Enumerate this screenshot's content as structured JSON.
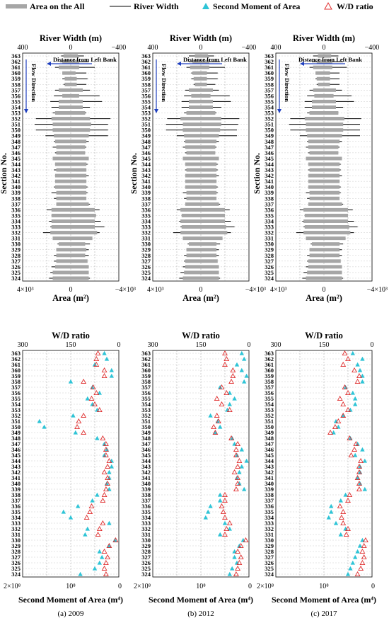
{
  "legend": {
    "area_label": "Area on the All",
    "width_label": "River Width",
    "smoa_label": "Second Moment of Area",
    "wd_label": "W/D ratio"
  },
  "labels": {
    "top_axis": "River Width (m)",
    "bottom_axis": "Area (m²)",
    "y_axis": "Section No.",
    "distance_note": "Distance from Left Bank",
    "flow_note": "Flow Direction",
    "wd_top_axis": "W/D ratio",
    "smoa_axis": "Second Moment of Area (m⁴)"
  },
  "ticks": {
    "width": [
      "400",
      "0",
      "−400"
    ],
    "area": [
      "4×10³",
      "0",
      "−4×10³"
    ],
    "wd": [
      "300",
      "150",
      "0"
    ],
    "smoa": [
      "2×10⁸",
      "10⁸",
      "0"
    ]
  },
  "colors": {
    "area_bar": "#a6a6a6",
    "width_line": "#000000",
    "smoa_marker": "#2ec4d6",
    "wd_marker": "#e03030",
    "flow_arrow": "#1f3fbf"
  },
  "chart_data": {
    "type": "composite",
    "sections": [
      363,
      362,
      361,
      360,
      359,
      358,
      357,
      356,
      355,
      354,
      353,
      352,
      351,
      350,
      349,
      348,
      347,
      346,
      345,
      344,
      343,
      342,
      341,
      340,
      339,
      338,
      337,
      336,
      335,
      334,
      333,
      332,
      331,
      330,
      329,
      328,
      327,
      326,
      325,
      324
    ],
    "years": [
      {
        "caption": "(a) 2009",
        "width_left": [
          80,
          90,
          130,
          70,
          70,
          60,
          130,
          140,
          170,
          160,
          150,
          290,
          300,
          290,
          210,
          140,
          150,
          130,
          110,
          120,
          140,
          110,
          110,
          140,
          160,
          140,
          120,
          200,
          150,
          180,
          170,
          230,
          150,
          110,
          120,
          140,
          140,
          160,
          170,
          180
        ],
        "width_right": [
          110,
          150,
          200,
          130,
          140,
          130,
          160,
          240,
          260,
          160,
          130,
          330,
          310,
          310,
          310,
          150,
          130,
          110,
          100,
          140,
          130,
          150,
          130,
          140,
          140,
          110,
          160,
          240,
          210,
          250,
          280,
          240,
          180,
          160,
          150,
          150,
          110,
          110,
          140,
          160
        ],
        "area_left": [
          600,
          700,
          1000,
          700,
          500,
          500,
          1000,
          700,
          1000,
          1000,
          1300,
          1600,
          1500,
          1500,
          1400,
          1300,
          1200,
          1200,
          1500,
          1300,
          1200,
          1300,
          1300,
          1300,
          1200,
          1200,
          1200,
          1600,
          1600,
          1600,
          1600,
          1700,
          1500,
          1000,
          1200,
          1200,
          1200,
          1300,
          1500,
          1500
        ],
        "area_right": [
          600,
          700,
          700,
          400,
          500,
          500,
          1000,
          700,
          1000,
          1000,
          1200,
          1600,
          1700,
          1600,
          1500,
          1300,
          1200,
          1200,
          1500,
          1300,
          1300,
          1300,
          1300,
          1300,
          1300,
          1300,
          1500,
          2000,
          2100,
          2000,
          2000,
          2200,
          1800,
          1200,
          1300,
          1200,
          1400,
          1500,
          1500,
          1500
        ],
        "wd": [
          65,
          70,
          70,
          45,
          45,
          110,
          80,
          70,
          85,
          75,
          60,
          110,
          125,
          130,
          110,
          50,
          40,
          40,
          40,
          30,
          35,
          45,
          35,
          35,
          40,
          45,
          50,
          85,
          90,
          100,
          50,
          60,
          65,
          10,
          30,
          45,
          35,
          40,
          45,
          40
        ],
        "smoa": [
          30000000.0,
          25000000.0,
          50000000.0,
          15000000.0,
          15000000.0,
          100000000.0,
          55000000.0,
          40000000.0,
          65000000.0,
          55000000.0,
          45000000.0,
          95000000.0,
          165000000.0,
          155000000.0,
          90000000.0,
          45000000.0,
          30000000.0,
          25000000.0,
          30000000.0,
          15000000.0,
          15000000.0,
          20000000.0,
          20000000.0,
          25000000.0,
          20000000.0,
          45000000.0,
          55000000.0,
          85000000.0,
          115000000.0,
          100000000.0,
          20000000.0,
          65000000.0,
          70000000.0,
          8000000.0,
          20000000.0,
          40000000.0,
          35000000.0,
          40000000.0,
          50000000.0,
          80000000.0
        ]
      },
      {
        "caption": "(b) 2012",
        "width_left": [
          100,
          100,
          120,
          80,
          80,
          60,
          130,
          140,
          160,
          160,
          140,
          280,
          290,
          290,
          200,
          140,
          150,
          130,
          110,
          120,
          130,
          110,
          110,
          130,
          150,
          140,
          120,
          200,
          160,
          180,
          170,
          230,
          150,
          110,
          120,
          140,
          140,
          150,
          170,
          180
        ],
        "width_right": [
          110,
          160,
          200,
          140,
          140,
          120,
          150,
          240,
          250,
          170,
          130,
          320,
          310,
          300,
          300,
          150,
          130,
          110,
          100,
          140,
          140,
          150,
          130,
          140,
          140,
          110,
          160,
          240,
          200,
          250,
          280,
          250,
          180,
          160,
          150,
          150,
          110,
          110,
          140,
          160
        ],
        "area_left": [
          500,
          700,
          900,
          700,
          600,
          500,
          1000,
          800,
          1000,
          1000,
          1200,
          1700,
          1500,
          1500,
          1400,
          1300,
          1300,
          1200,
          1500,
          1300,
          1200,
          1300,
          1300,
          1300,
          1200,
          1200,
          1300,
          1700,
          1600,
          1700,
          1600,
          1700,
          1500,
          1000,
          1200,
          1200,
          1300,
          1300,
          1400,
          1500
        ],
        "area_right": [
          600,
          700,
          700,
          500,
          500,
          500,
          1000,
          800,
          1000,
          1000,
          1200,
          1700,
          1700,
          1600,
          1500,
          1300,
          1200,
          1200,
          1500,
          1300,
          1300,
          1300,
          1300,
          1300,
          1300,
          1300,
          1500,
          2000,
          2000,
          2000,
          2100,
          2200,
          1800,
          1300,
          1300,
          1300,
          1400,
          1500,
          1500,
          1500
        ],
        "wd": [
          75,
          70,
          75,
          50,
          50,
          55,
          85,
          70,
          100,
          85,
          60,
          100,
          95,
          110,
          105,
          55,
          35,
          40,
          40,
          30,
          35,
          45,
          35,
          35,
          40,
          75,
          75,
          85,
          80,
          75,
          60,
          70,
          75,
          10,
          25,
          35,
          25,
          30,
          35,
          40
        ],
        "smoa": [
          15000000.0,
          10000000.0,
          25000000.0,
          15000000.0,
          5000000.0,
          10000000.0,
          60000000.0,
          40000000.0,
          30000000.0,
          40000000.0,
          45000000.0,
          80000000.0,
          65000000.0,
          60000000.0,
          70000000.0,
          35000000.0,
          30000000.0,
          15000000.0,
          25000000.0,
          5000000.0,
          15000000.0,
          20000000.0,
          25000000.0,
          20000000.0,
          10000000.0,
          60000000.0,
          60000000.0,
          80000000.0,
          85000000.0,
          90000000.0,
          50000000.0,
          40000000.0,
          60000000.0,
          12000000.0,
          20000000.0,
          30000000.0,
          30000000.0,
          25000000.0,
          35000000.0,
          40000000.0
        ]
      },
      {
        "caption": "(c) 2017",
        "width_left": [
          90,
          100,
          120,
          70,
          70,
          60,
          120,
          140,
          160,
          160,
          140,
          280,
          290,
          280,
          200,
          140,
          150,
          130,
          110,
          120,
          130,
          110,
          110,
          130,
          150,
          140,
          120,
          200,
          160,
          180,
          170,
          230,
          150,
          110,
          120,
          140,
          140,
          150,
          170,
          180
        ],
        "width_right": [
          120,
          160,
          190,
          130,
          130,
          130,
          150,
          230,
          250,
          160,
          120,
          310,
          300,
          300,
          300,
          150,
          130,
          110,
          100,
          140,
          140,
          150,
          130,
          140,
          140,
          110,
          160,
          240,
          200,
          250,
          280,
          250,
          180,
          160,
          150,
          150,
          110,
          110,
          140,
          160
        ],
        "area_left": [
          500,
          600,
          900,
          700,
          600,
          500,
          900,
          800,
          1000,
          1000,
          1200,
          1600,
          1500,
          1500,
          1400,
          1300,
          1300,
          1200,
          1500,
          1300,
          1200,
          1300,
          1300,
          1300,
          1200,
          1200,
          1300,
          1700,
          1600,
          1700,
          1600,
          1700,
          1500,
          1000,
          1200,
          1200,
          1300,
          1300,
          1400,
          1500
        ],
        "area_right": [
          600,
          700,
          700,
          500,
          500,
          500,
          1000,
          800,
          1000,
          1000,
          1200,
          1700,
          1600,
          1600,
          1500,
          1300,
          1200,
          1200,
          1500,
          1300,
          1300,
          1300,
          1300,
          1300,
          1300,
          1300,
          1500,
          2000,
          2000,
          2000,
          2100,
          2200,
          1800,
          1300,
          1300,
          1300,
          1400,
          1500,
          1500,
          1500
        ],
        "wd": [
          85,
          75,
          90,
          55,
          40,
          45,
          85,
          75,
          100,
          90,
          75,
          90,
          105,
          115,
          130,
          70,
          50,
          55,
          65,
          35,
          40,
          40,
          45,
          40,
          40,
          70,
          75,
          100,
          90,
          95,
          90,
          75,
          80,
          20,
          25,
          30,
          25,
          30,
          35,
          45
        ],
        "smoa": [
          40000000.0,
          20000000.0,
          30000000.0,
          25000000.0,
          20000000.0,
          20000000.0,
          55000000.0,
          40000000.0,
          35000000.0,
          35000000.0,
          45000000.0,
          60000000.0,
          75000000.0,
          70000000.0,
          80000000.0,
          45000000.0,
          30000000.0,
          20000000.0,
          35000000.0,
          15000000.0,
          25000000.0,
          25000000.0,
          30000000.0,
          25000000.0,
          15000000.0,
          55000000.0,
          65000000.0,
          85000000.0,
          85000000.0,
          90000000.0,
          75000000.0,
          55000000.0,
          65000000.0,
          20000000.0,
          25000000.0,
          30000000.0,
          35000000.0,
          40000000.0,
          45000000.0,
          50000000.0
        ]
      }
    ]
  }
}
